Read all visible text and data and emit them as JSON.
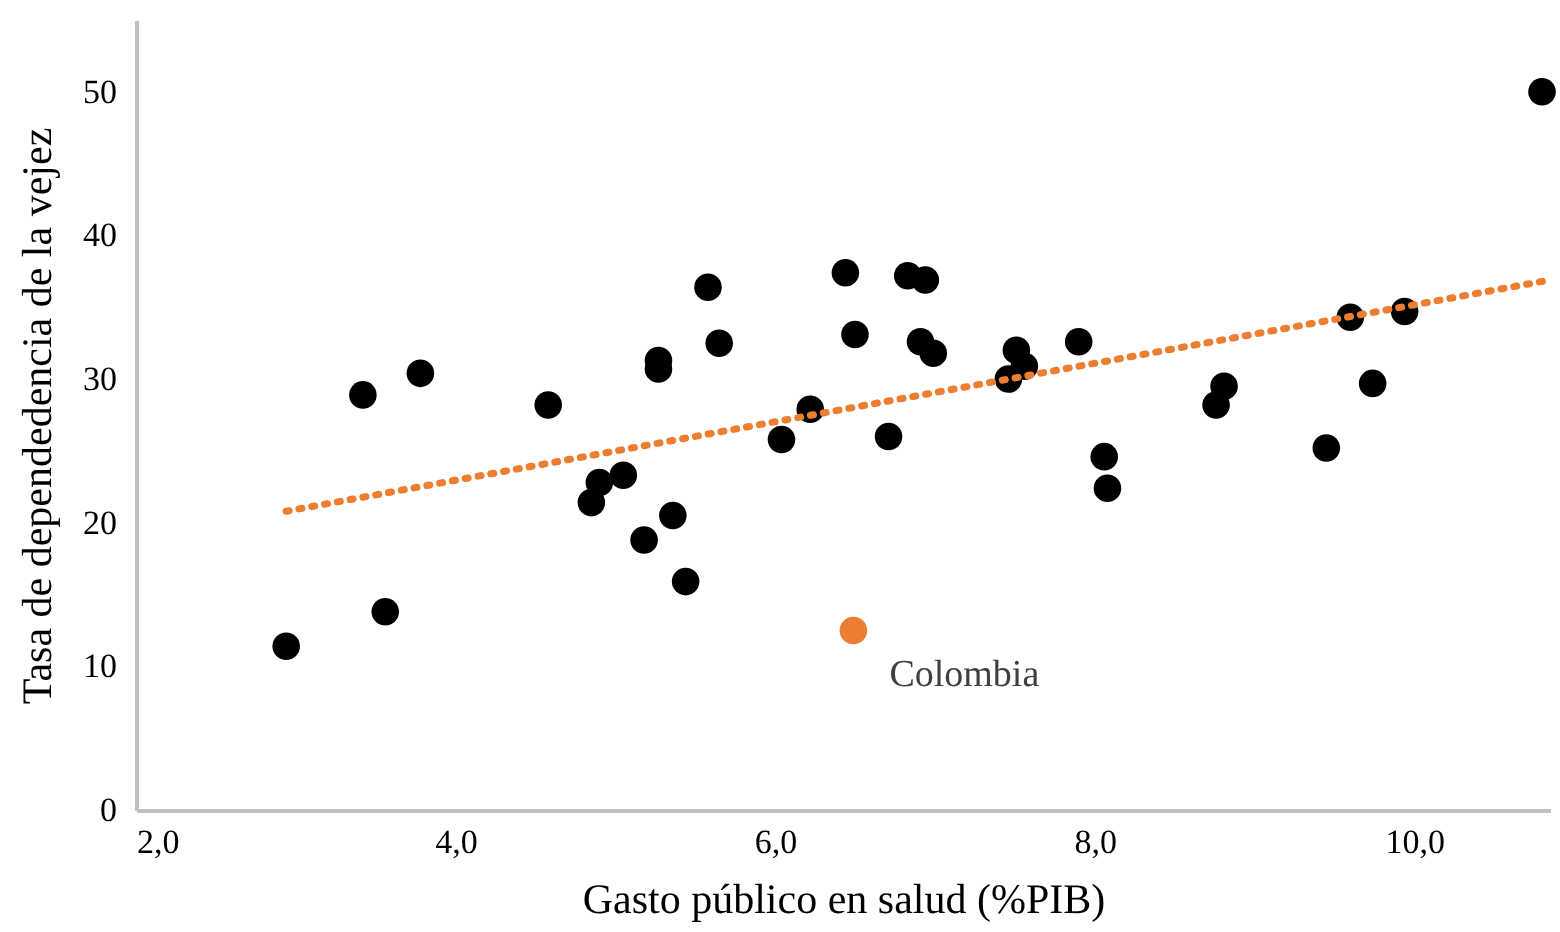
{
  "chart_data": {
    "type": "scatter",
    "xlabel": "Gasto público en salud (%PIB)",
    "ylabel": "Tasa de dependedencia de la vejez",
    "xlim": [
      2,
      10.85
    ],
    "ylim": [
      0,
      55
    ],
    "xticks": [
      {
        "value": 2,
        "label": "2,0"
      },
      {
        "value": 4,
        "label": "4,0"
      },
      {
        "value": 6,
        "label": "6,0"
      },
      {
        "value": 8,
        "label": "8,0"
      },
      {
        "value": 10,
        "label": "10,0"
      }
    ],
    "yticks": [
      0,
      10,
      20,
      30,
      40,
      50
    ],
    "grid": false,
    "marker": "circle",
    "series": [
      {
        "color": "#000000",
        "x": [
          2.94,
          3.42,
          3.56,
          3.78,
          4.58,
          4.85,
          4.9,
          5.05,
          5.18,
          5.27,
          5.27,
          5.36,
          5.44,
          5.58,
          5.65,
          6.04,
          6.22,
          6.44,
          6.5,
          6.71,
          6.83,
          6.94,
          6.91,
          6.99,
          7.46,
          7.51,
          7.56,
          7.9,
          8.06,
          8.08,
          8.76,
          8.81,
          9.45,
          9.6,
          9.74,
          9.94,
          10.8
        ],
        "values": [
          11.4,
          28.9,
          13.8,
          30.4,
          28.2,
          21.4,
          22.8,
          23.3,
          18.8,
          31.3,
          30.7,
          20.5,
          15.9,
          36.4,
          32.5,
          25.8,
          27.9,
          37.4,
          33.1,
          26.0,
          37.2,
          36.9,
          32.6,
          31.8,
          30.0,
          32.0,
          30.9,
          32.6,
          24.6,
          22.4,
          28.2,
          29.5,
          25.2,
          34.3,
          29.7,
          34.7,
          50.0
        ]
      },
      {
        "name": "Colombia",
        "color": "#ed7d31",
        "x": [
          6.49
        ],
        "values": [
          12.5
        ]
      },
      {
        "type": "line",
        "color": "#ed7d31",
        "line_style": "dotted",
        "marker": "none",
        "x": [
          2.94,
          10.85
        ],
        "values": [
          20.8,
          36.9
        ]
      }
    ]
  }
}
